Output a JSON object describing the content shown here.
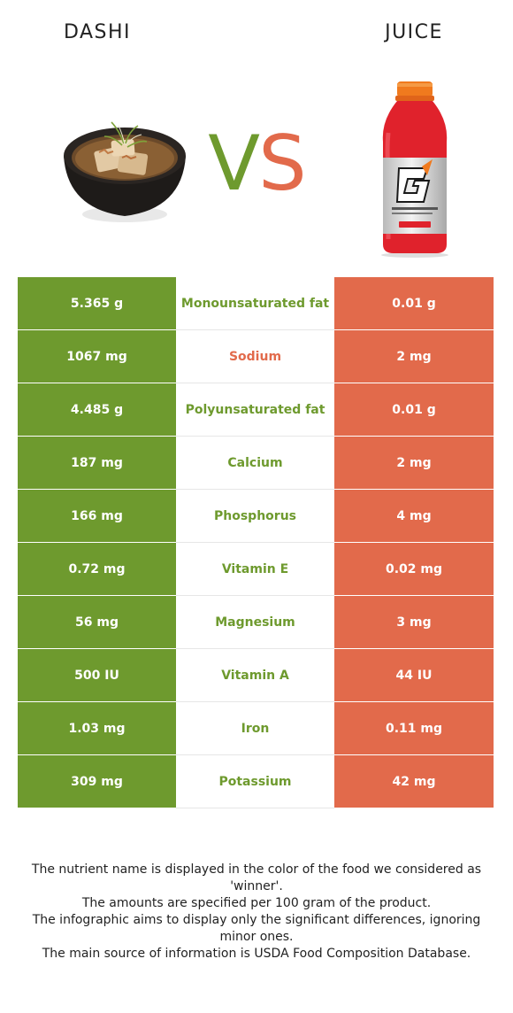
{
  "header": {
    "left_food": "DASHI",
    "right_food": "JUICE",
    "vs_v": "V",
    "vs_s": "S"
  },
  "colors": {
    "left_winner": "#6e9a2e",
    "right_winner": "#e26a4b"
  },
  "rows": [
    {
      "left": "5.365 g",
      "nutrient": "Monounsaturated fat",
      "right": "0.01 g",
      "winner": "left"
    },
    {
      "left": "1067 mg",
      "nutrient": "Sodium",
      "right": "2 mg",
      "winner": "right"
    },
    {
      "left": "4.485 g",
      "nutrient": "Polyunsaturated fat",
      "right": "0.01 g",
      "winner": "left"
    },
    {
      "left": "187 mg",
      "nutrient": "Calcium",
      "right": "2 mg",
      "winner": "left"
    },
    {
      "left": "166 mg",
      "nutrient": "Phosphorus",
      "right": "4 mg",
      "winner": "left"
    },
    {
      "left": "0.72 mg",
      "nutrient": "Vitamin E",
      "right": "0.02 mg",
      "winner": "left"
    },
    {
      "left": "56 mg",
      "nutrient": "Magnesium",
      "right": "3 mg",
      "winner": "left"
    },
    {
      "left": "500 IU",
      "nutrient": "Vitamin A",
      "right": "44 IU",
      "winner": "left"
    },
    {
      "left": "1.03 mg",
      "nutrient": "Iron",
      "right": "0.11 mg",
      "winner": "left"
    },
    {
      "left": "309 mg",
      "nutrient": "Potassium",
      "right": "42 mg",
      "winner": "left"
    }
  ],
  "footer": {
    "line1": "The nutrient name is displayed in the color of the food we considered as 'winner'.",
    "line2": "The amounts are specified per 100 gram of the product.",
    "line3": "The infographic aims to display only the significant differences, ignoring minor ones.",
    "line4": "The main source of information is USDA Food Composition Database."
  }
}
